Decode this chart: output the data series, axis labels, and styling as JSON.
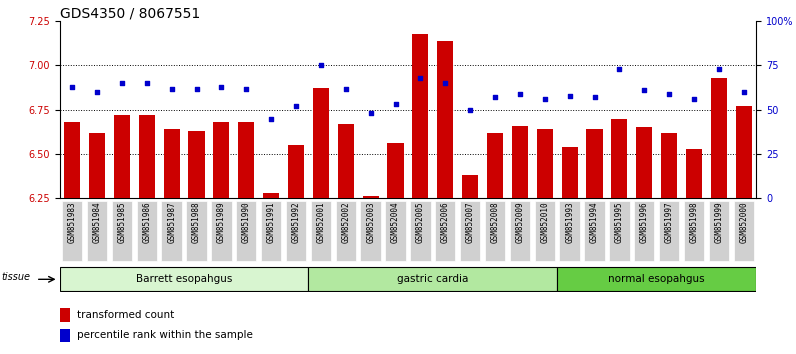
{
  "title": "GDS4350 / 8067551",
  "samples": [
    "GSM851983",
    "GSM851984",
    "GSM851985",
    "GSM851986",
    "GSM851987",
    "GSM851988",
    "GSM851989",
    "GSM851990",
    "GSM851991",
    "GSM851992",
    "GSM852001",
    "GSM852002",
    "GSM852003",
    "GSM852004",
    "GSM852005",
    "GSM852006",
    "GSM852007",
    "GSM852008",
    "GSM852009",
    "GSM852010",
    "GSM851993",
    "GSM851994",
    "GSM851995",
    "GSM851996",
    "GSM851997",
    "GSM851998",
    "GSM851999",
    "GSM852000"
  ],
  "bar_values": [
    6.68,
    6.62,
    6.72,
    6.72,
    6.64,
    6.63,
    6.68,
    6.68,
    6.28,
    6.55,
    6.87,
    6.67,
    6.26,
    6.56,
    7.18,
    7.14,
    6.38,
    6.62,
    6.66,
    6.64,
    6.54,
    6.64,
    6.7,
    6.65,
    6.62,
    6.53,
    6.93,
    6.77
  ],
  "dot_values": [
    63,
    60,
    65,
    65,
    62,
    62,
    63,
    62,
    45,
    52,
    75,
    62,
    48,
    53,
    68,
    65,
    50,
    57,
    59,
    56,
    58,
    57,
    73,
    61,
    59,
    56,
    73,
    60
  ],
  "groups": [
    {
      "label": "Barrett esopahgus",
      "start": 0,
      "end": 10,
      "color": "#d8f5d0"
    },
    {
      "label": "gastric cardia",
      "start": 10,
      "end": 20,
      "color": "#b2e8a0"
    },
    {
      "label": "normal esopahgus",
      "start": 20,
      "end": 28,
      "color": "#66cc44"
    }
  ],
  "ylim_left": [
    6.25,
    7.25
  ],
  "ylim_right": [
    0,
    100
  ],
  "yticks_left": [
    6.25,
    6.5,
    6.75,
    7.0,
    7.25
  ],
  "yticks_right": [
    0,
    25,
    50,
    75,
    100
  ],
  "bar_color": "#cc0000",
  "dot_color": "#0000cc",
  "xtick_bg": "#d0d0d0",
  "title_fontsize": 10,
  "tick_fontsize": 7,
  "xlabel_fontsize": 5.5
}
